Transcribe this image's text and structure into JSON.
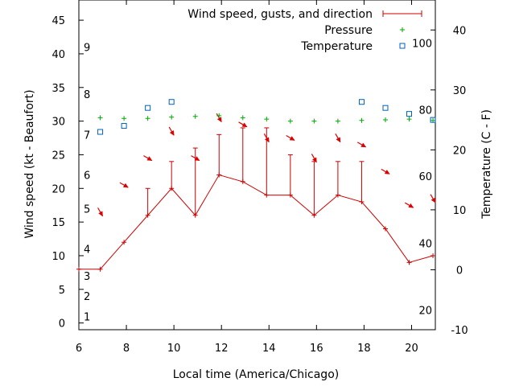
{
  "chart_data": {
    "type": "line",
    "title": "",
    "xlabel": "Local time (America/Chicago)",
    "ylabel": "Wind speed (kt - Beaufort)",
    "y2label": "Temperature (C - F)",
    "xlim": [
      6,
      21
    ],
    "ylim": [
      -1,
      48
    ],
    "y2lim": [
      -10,
      45
    ],
    "x_ticks": [
      "6",
      "8",
      "10",
      "12",
      "14",
      "16",
      "18",
      "20"
    ],
    "y_ticks": [
      "0",
      "5",
      "10",
      "15",
      "20",
      "25",
      "30",
      "35",
      "40",
      "45"
    ],
    "y2_ticks": [
      "-10",
      "0",
      "10",
      "20",
      "30",
      "40"
    ],
    "beaufort_labels": [
      {
        "text": "1",
        "y": 1
      },
      {
        "text": "2",
        "y": 4
      },
      {
        "text": "3",
        "y": 7
      },
      {
        "text": "4",
        "y": 11
      },
      {
        "text": "5",
        "y": 17
      },
      {
        "text": "6",
        "y": 22
      },
      {
        "text": "7",
        "y": 28
      },
      {
        "text": "8",
        "y": 34
      },
      {
        "text": "9",
        "y": 41
      }
    ],
    "fahrenheit_labels": [
      {
        "text": "20",
        "c": -6.7
      },
      {
        "text": "40",
        "c": 4.4
      },
      {
        "text": "60",
        "c": 15.6
      },
      {
        "text": "80",
        "c": 26.7
      },
      {
        "text": "100",
        "c": 37.8
      }
    ],
    "legend": {
      "position": "top-right",
      "entries": [
        "Wind speed, gusts, and direction",
        "Pressure",
        "Temperature"
      ]
    },
    "colors": {
      "wind": "#cc0000",
      "pressure": "#00aa00",
      "temperature": "#0060c0",
      "arrow": "#dd0000"
    },
    "series": [
      {
        "name": "Wind speed, gusts, and direction",
        "x": [
          6,
          6.9,
          7.9,
          8.9,
          9.9,
          10.9,
          11.9,
          12.9,
          13.9,
          14.9,
          15.9,
          16.9,
          17.9,
          18.9,
          19.9,
          20.9
        ],
        "values": [
          8,
          8,
          12,
          16,
          20,
          16,
          22,
          21,
          19,
          19,
          16,
          19,
          18,
          14,
          9,
          10
        ],
        "gusts": [
          null,
          null,
          null,
          20,
          24,
          26,
          28,
          29,
          29,
          25,
          24,
          24,
          24,
          null,
          null,
          null
        ],
        "direction_deg": [
          null,
          330,
          300,
          300,
          330,
          300,
          330,
          300,
          330,
          300,
          330,
          330,
          300,
          300,
          300,
          330
        ]
      },
      {
        "name": "Pressure",
        "x": [
          6.9,
          7.9,
          8.9,
          9.9,
          10.9,
          11.9,
          12.9,
          13.9,
          14.9,
          15.9,
          16.9,
          17.9,
          18.9,
          19.9,
          20.9
        ],
        "values": [
          30.5,
          30.4,
          30.4,
          30.6,
          30.7,
          30.8,
          30.5,
          30.3,
          30.0,
          30.0,
          30.0,
          30.1,
          30.2,
          30.3,
          30.1
        ]
      },
      {
        "name": "Temperature",
        "x": [
          6.9,
          7.9,
          8.9,
          9.9,
          17.9,
          18.9,
          19.9,
          20.9
        ],
        "values": [
          23,
          24,
          27,
          28,
          28,
          27,
          26,
          25
        ]
      }
    ]
  }
}
